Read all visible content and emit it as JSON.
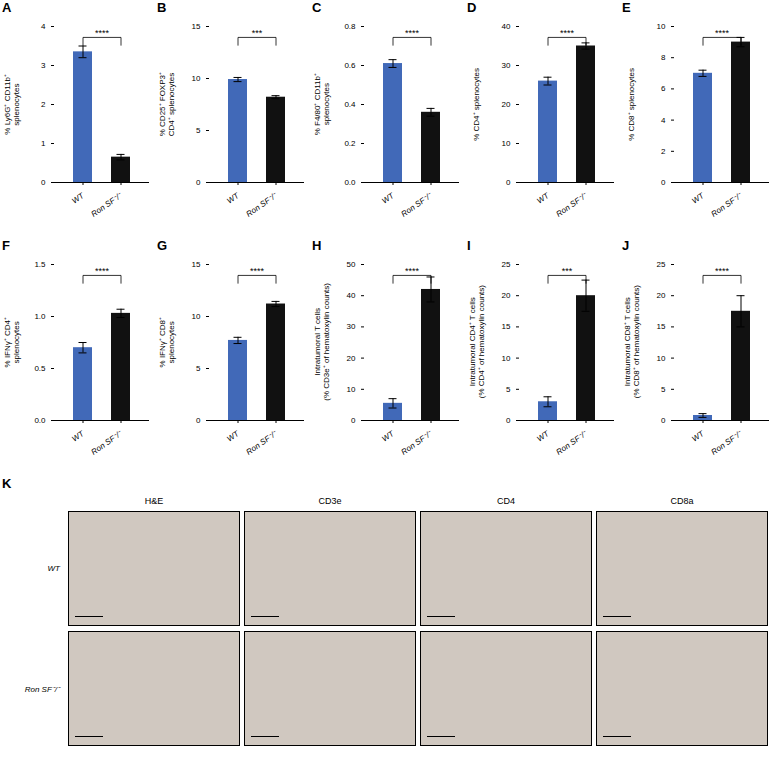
{
  "chart_data": [
    {
      "type": "bar",
      "title": "A",
      "ylabel": "% Ly6G⁺ CD11b⁺\nsplenocytes",
      "categories": [
        "WT",
        "Ron SF⁻/⁻"
      ],
      "values": [
        3.35,
        0.65
      ],
      "errors": [
        0.15,
        0.07
      ],
      "colors": [
        "#4169b8",
        "#111111"
      ],
      "ylim": [
        0,
        4
      ],
      "yticks": [
        0,
        1,
        2,
        3,
        4
      ],
      "annotations": [
        "****"
      ]
    },
    {
      "type": "bar",
      "title": "B",
      "ylabel": "% CD25⁺ FOXP3⁺\nCD4⁺ splenocytes",
      "categories": [
        "WT",
        "Ron SF⁻/⁻"
      ],
      "values": [
        9.9,
        8.2
      ],
      "errors": [
        0.2,
        0.15
      ],
      "colors": [
        "#4169b8",
        "#111111"
      ],
      "ylim": [
        0,
        15
      ],
      "yticks": [
        0,
        5,
        10,
        15
      ],
      "annotations": [
        "***"
      ]
    },
    {
      "type": "bar",
      "title": "C",
      "ylabel": "% F4/80⁺ CD11b⁺\nsplenocytes",
      "categories": [
        "WT",
        "Ron SF⁻/⁻"
      ],
      "values": [
        0.61,
        0.36
      ],
      "errors": [
        0.02,
        0.02
      ],
      "colors": [
        "#4169b8",
        "#111111"
      ],
      "ylim": [
        0,
        0.8
      ],
      "yticks": [
        {
          "value": 0,
          "label": "0.0"
        },
        0.2,
        0.4,
        0.6,
        0.8
      ],
      "annotations": [
        "****"
      ]
    },
    {
      "type": "bar",
      "title": "D",
      "ylabel": "% CD4⁺ splenocytes",
      "categories": [
        "WT",
        "Ron SF⁻/⁻"
      ],
      "values": [
        26.0,
        35.0
      ],
      "errors": [
        1.0,
        0.8
      ],
      "colors": [
        "#4169b8",
        "#111111"
      ],
      "ylim": [
        0,
        40
      ],
      "yticks": [
        0,
        10,
        20,
        30,
        40
      ],
      "annotations": [
        "****"
      ]
    },
    {
      "type": "bar",
      "title": "E",
      "ylabel": "% CD8⁺ splenocytes",
      "categories": [
        "WT",
        "Ron SF⁻/⁻"
      ],
      "values": [
        7.0,
        9.0
      ],
      "errors": [
        0.2,
        0.3
      ],
      "colors": [
        "#4169b8",
        "#111111"
      ],
      "ylim": [
        0,
        10
      ],
      "yticks": [
        0,
        2,
        4,
        6,
        8,
        10
      ],
      "annotations": [
        "****"
      ]
    },
    {
      "type": "bar",
      "title": "F",
      "ylabel": "% IFNγ⁺ CD4⁺\nsplenocytes",
      "categories": [
        "WT",
        "Ron SF⁻/⁻"
      ],
      "values": [
        0.7,
        1.03
      ],
      "errors": [
        0.05,
        0.04
      ],
      "colors": [
        "#4169b8",
        "#111111"
      ],
      "ylim": [
        0,
        1.5
      ],
      "yticks": [
        {
          "value": 0,
          "label": "0.0"
        },
        0.5,
        {
          "value": 1,
          "label": "1.0"
        },
        1.5
      ],
      "annotations": [
        "****"
      ]
    },
    {
      "type": "bar",
      "title": "G",
      "ylabel": "% IFNγ⁺ CD8⁺\nsplenocytes",
      "categories": [
        "WT",
        "Ron SF⁻/⁻"
      ],
      "values": [
        7.7,
        11.2
      ],
      "errors": [
        0.3,
        0.25
      ],
      "colors": [
        "#4169b8",
        "#111111"
      ],
      "ylim": [
        0,
        15
      ],
      "yticks": [
        0,
        5,
        10,
        15
      ],
      "annotations": [
        "****"
      ]
    },
    {
      "type": "bar",
      "title": "H",
      "ylabel": "Intratumoral T cells\n(% CD3e⁺ of hematoxylin counts)",
      "categories": [
        "WT",
        "Ron SF⁻/⁻"
      ],
      "values": [
        5.5,
        42.0
      ],
      "errors": [
        1.5,
        4.0
      ],
      "colors": [
        "#4169b8",
        "#111111"
      ],
      "ylim": [
        0,
        50
      ],
      "yticks": [
        0,
        10,
        20,
        30,
        40,
        50
      ],
      "annotations": [
        "****"
      ]
    },
    {
      "type": "bar",
      "title": "I",
      "ylabel": "Intratumoral CD4⁺ T cells\n(% CD4⁺ of hematoxylin counts)",
      "categories": [
        "WT",
        "Ron SF⁻/⁻"
      ],
      "values": [
        3.0,
        20.0
      ],
      "errors": [
        0.8,
        2.5
      ],
      "colors": [
        "#4169b8",
        "#111111"
      ],
      "ylim": [
        0,
        25
      ],
      "yticks": [
        0,
        5,
        10,
        15,
        20,
        25
      ],
      "annotations": [
        "***"
      ]
    },
    {
      "type": "bar",
      "title": "J",
      "ylabel": "Intratumoral CD8⁺ T cells\n(% CD8⁺ of hematoxylin counts)",
      "categories": [
        "WT",
        "Ron SF⁻/⁻"
      ],
      "values": [
        0.8,
        17.5
      ],
      "errors": [
        0.3,
        2.5
      ],
      "colors": [
        "#4169b8",
        "#111111"
      ],
      "ylim": [
        0,
        25
      ],
      "yticks": [
        0,
        5,
        10,
        15,
        20,
        25
      ],
      "annotations": [
        "****"
      ]
    },
    {
      "type": "image_grid",
      "title": "K",
      "categories": [
        "H&E",
        "CD3e",
        "CD4",
        "CD8a"
      ],
      "row_labels": [
        "WT",
        "Ron SF⁻/⁻"
      ],
      "color": "#d0c8c0"
    }
  ]
}
